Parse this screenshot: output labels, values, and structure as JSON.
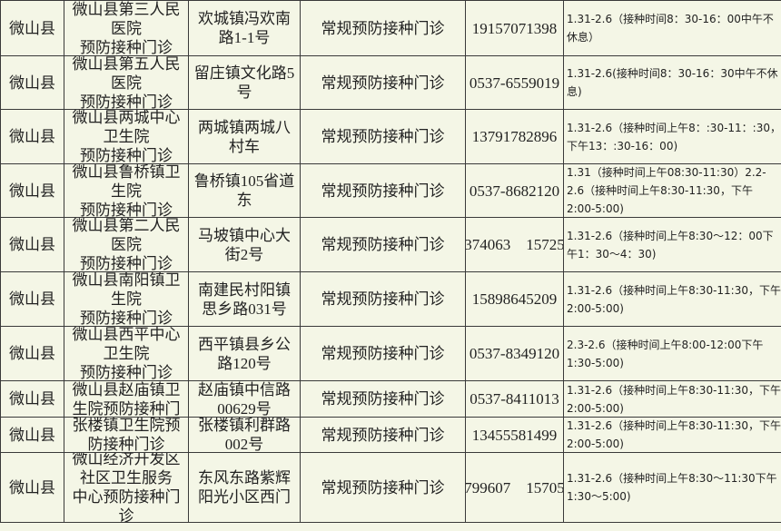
{
  "table": {
    "rows": [
      [
        "微山县",
        "微山县第三人民\n医院\n预防接种门诊",
        "欢城镇冯欢南\n路1-1号",
        "常规预防接种门诊",
        "19157071398",
        "1.31-2.6（接种时间8：30-16：00中午不休息）"
      ],
      [
        "微山县",
        "微山县第五人民\n医院\n预防接种门诊",
        "留庄镇文化路5\n号",
        "常规预防接种门诊",
        "0537-6559019",
        "1.31-2.6(接种时间8：30-16：30中午不休息)"
      ],
      [
        "微山县",
        "微山县两城中心\n卫生院\n预防接种门诊",
        "两城镇两城八\n村车",
        "常规预防接种门诊",
        "13791782896",
        "1.31-2.6（接种时间上午8：:30-11：:30，下午13：:30-16：00)"
      ],
      [
        "微山县",
        "微山县鲁桥镇卫\n生院\n预防接种门诊",
        "鲁桥镇105省道\n东",
        "常规预防接种门诊",
        "0537-8682120",
        "1.31（接种时间上午08:30-11:30）2.2-2.6（接种时间上午8:30-11:30，下午2:00-5:00)"
      ],
      [
        "微山县",
        "微山县第二人民\n医院\n预防接种门诊",
        "马坡镇中心大\n街2号",
        "常规预防接种门诊",
        "374063　15725",
        "1.31-2.6（接种时间上午8:30～12：00下午1：30～4：30)"
      ],
      [
        "微山县",
        "微山县南阳镇卫\n生院\n预防接种门诊",
        "南建民村阳镇\n思乡路031号",
        "常规预防接种门诊",
        "15898645209",
        "1.31-2.6（接种时间上午8:30-11:30，下午2:00-5:00)"
      ],
      [
        "微山县",
        "微山县西平中心\n卫生院\n预防接种门诊",
        "西平镇县乡公\n路120号",
        "常规预防接种门诊",
        "0537-8349120",
        "2.3-2.6（接种时间上午8:00-12:00下午1:30-5:00)"
      ],
      [
        "微山县",
        "微山县赵庙镇卫\n生院预防接种门",
        "赵庙镇中信路\n00629号",
        "常规预防接种门诊",
        "0537-8411013",
        "1.31-2.6（接种时间上午8:30-11:30，下午2:00-5:00)"
      ],
      [
        "微山县",
        "张楼镇卫生院预\n防接种门诊",
        "张楼镇利群路\n002号",
        "常规预防接种门诊",
        "13455581499",
        "1.31-2.6（接种时间上午8:30-11:30，下午2:00-5:00)"
      ],
      [
        "微山县",
        "微山经济开发区\n社区卫生服务\n中心预防接种门\n诊",
        "东风东路紫辉\n阳光小区西门",
        "常规预防接种门诊",
        "799607　15705",
        "1.31-2.6（接种时间上午8:30～11:30下午1:30～5:00)"
      ]
    ]
  }
}
